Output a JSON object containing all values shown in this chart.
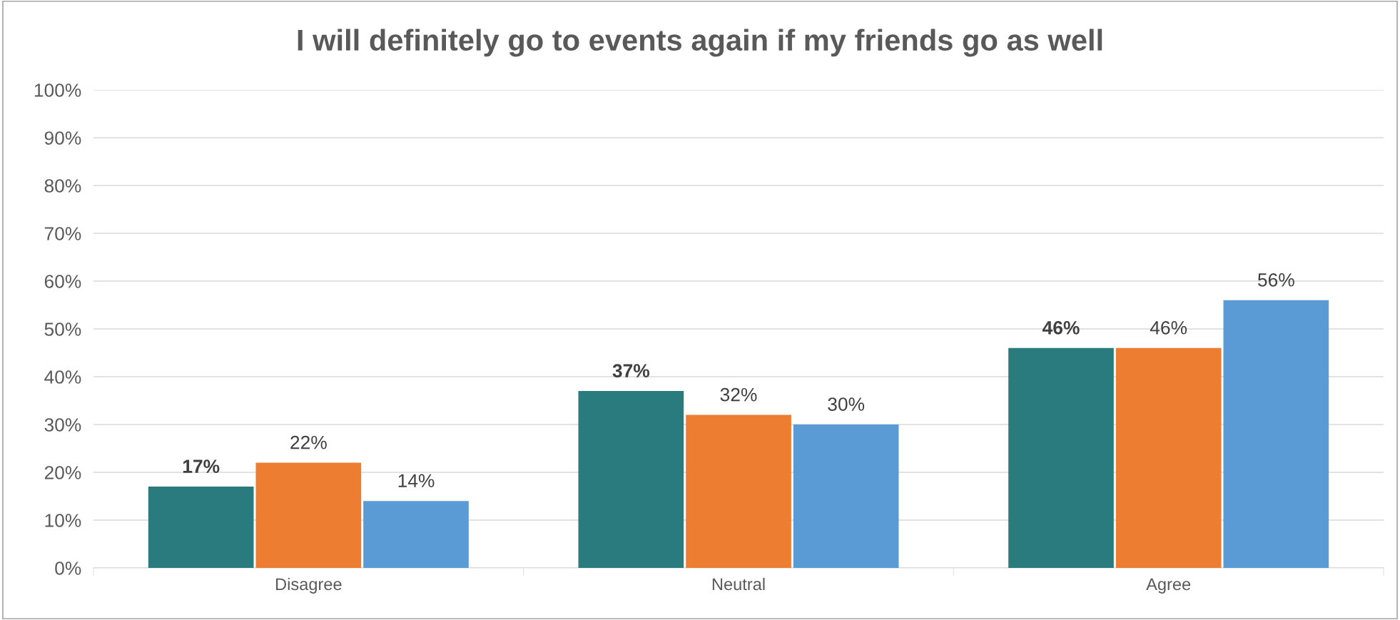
{
  "chart_data": {
    "type": "bar",
    "title": "I will definitely go to events again if my friends go as well",
    "categories": [
      "Disagree",
      "Neutral",
      "Agree"
    ],
    "series": [
      {
        "color": "#2a7b7e",
        "values": [
          17,
          37,
          46
        ],
        "value_labels": [
          "17%",
          "37%",
          "46%"
        ]
      },
      {
        "color": "#ed7d31",
        "values": [
          22,
          32,
          46
        ],
        "value_labels": [
          "22%",
          "32%",
          "46%"
        ]
      },
      {
        "color": "#5b9bd5",
        "values": [
          14,
          30,
          56
        ],
        "value_labels": [
          "14%",
          "30%",
          "56%"
        ]
      }
    ],
    "ylim": [
      0,
      100
    ],
    "yticks": [
      {
        "value": 0,
        "label": "0%"
      },
      {
        "value": 10,
        "label": "10%"
      },
      {
        "value": 20,
        "label": "20%"
      },
      {
        "value": 30,
        "label": "30%"
      },
      {
        "value": 40,
        "label": "40%"
      },
      {
        "value": 50,
        "label": "50%"
      },
      {
        "value": 60,
        "label": "60%"
      },
      {
        "value": 70,
        "label": "70%"
      },
      {
        "value": 80,
        "label": "80%"
      },
      {
        "value": 90,
        "label": "90%"
      },
      {
        "value": 100,
        "label": "100%"
      }
    ],
    "grid": "y",
    "legend": false
  }
}
